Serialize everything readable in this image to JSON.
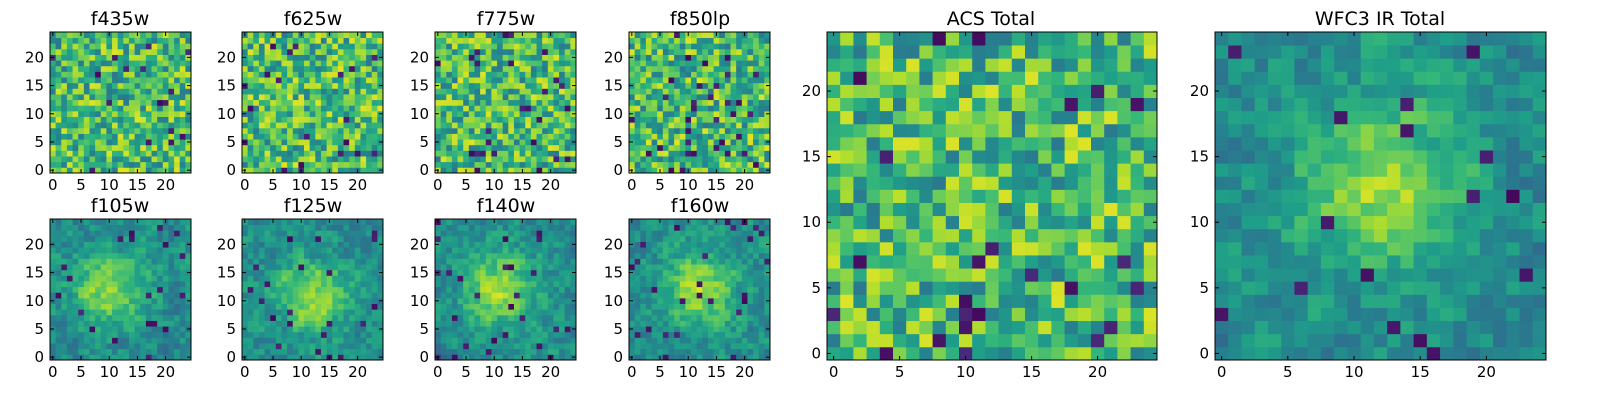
{
  "colormap": "viridis",
  "colors": {
    "viridis_low": "#440154",
    "viridis_mid": "#21918c",
    "viridis_high": "#fde725",
    "frame": "#000000",
    "background": "#ffffff"
  },
  "chart_data": [
    {
      "type": "heatmap",
      "title": "f435w",
      "grid_size": 25,
      "xticks": [
        0,
        5,
        10,
        15,
        20
      ],
      "yticks": [
        0,
        5,
        10,
        15,
        20
      ],
      "xlim": [
        -0.5,
        24.5
      ],
      "ylim": [
        -0.5,
        24.5
      ],
      "pattern": "noise",
      "dark_ratio": 0.025
    },
    {
      "type": "heatmap",
      "title": "f625w",
      "grid_size": 25,
      "xticks": [
        0,
        5,
        10,
        15,
        20
      ],
      "yticks": [
        0,
        5,
        10,
        15,
        20
      ],
      "xlim": [
        -0.5,
        24.5
      ],
      "ylim": [
        -0.5,
        24.5
      ],
      "pattern": "noise",
      "dark_ratio": 0.03
    },
    {
      "type": "heatmap",
      "title": "f775w",
      "grid_size": 25,
      "xticks": [
        0,
        5,
        10,
        15,
        20
      ],
      "yticks": [
        0,
        5,
        10,
        15,
        20
      ],
      "xlim": [
        -0.5,
        24.5
      ],
      "ylim": [
        -0.5,
        24.5
      ],
      "pattern": "noise",
      "dark_ratio": 0.04
    },
    {
      "type": "heatmap",
      "title": "f850lp",
      "grid_size": 25,
      "xticks": [
        0,
        5,
        10,
        15,
        20
      ],
      "yticks": [
        0,
        5,
        10,
        15,
        20
      ],
      "xlim": [
        -0.5,
        24.5
      ],
      "ylim": [
        -0.5,
        24.5
      ],
      "pattern": "noise",
      "dark_ratio": 0.04
    },
    {
      "type": "heatmap",
      "title": "f105w",
      "grid_size": 25,
      "xticks": [
        0,
        5,
        10,
        15,
        20
      ],
      "yticks": [
        0,
        5,
        10,
        15,
        20
      ],
      "xlim": [
        -0.5,
        24.5
      ],
      "ylim": [
        -0.5,
        24.5
      ],
      "pattern": "blob",
      "center": [
        10,
        12
      ],
      "dark_ratio": 0.03
    },
    {
      "type": "heatmap",
      "title": "f125w",
      "grid_size": 25,
      "xticks": [
        0,
        5,
        10,
        15,
        20
      ],
      "yticks": [
        0,
        5,
        10,
        15,
        20
      ],
      "xlim": [
        -0.5,
        24.5
      ],
      "ylim": [
        -0.5,
        24.5
      ],
      "pattern": "blob",
      "center": [
        12,
        11
      ],
      "dark_ratio": 0.03
    },
    {
      "type": "heatmap",
      "title": "f140w",
      "grid_size": 25,
      "xticks": [
        0,
        5,
        10,
        15,
        20
      ],
      "yticks": [
        0,
        5,
        10,
        15,
        20
      ],
      "xlim": [
        -0.5,
        24.5
      ],
      "ylim": [
        -0.5,
        24.5
      ],
      "pattern": "blob",
      "center": [
        11,
        12
      ],
      "dark_ratio": 0.05
    },
    {
      "type": "heatmap",
      "title": "f160w",
      "grid_size": 25,
      "xticks": [
        0,
        5,
        10,
        15,
        20
      ],
      "yticks": [
        0,
        5,
        10,
        15,
        20
      ],
      "xlim": [
        -0.5,
        24.5
      ],
      "ylim": [
        -0.5,
        24.5
      ],
      "pattern": "blob",
      "center": [
        12,
        12
      ],
      "dark_ratio": 0.035
    },
    {
      "type": "heatmap",
      "title": "ACS Total",
      "grid_size": 25,
      "xticks": [
        0,
        5,
        10,
        15,
        20
      ],
      "yticks": [
        0,
        5,
        10,
        15,
        20
      ],
      "xlim": [
        -0.5,
        24.5
      ],
      "ylim": [
        -0.5,
        24.5
      ],
      "pattern": "noise",
      "dark_ratio": 0.04
    },
    {
      "type": "heatmap",
      "title": "WFC3 IR Total",
      "grid_size": 25,
      "xticks": [
        0,
        5,
        10,
        15,
        20
      ],
      "yticks": [
        0,
        5,
        10,
        15,
        20
      ],
      "xlim": [
        -0.5,
        24.5
      ],
      "ylim": [
        -0.5,
        24.5
      ],
      "pattern": "blob",
      "center": [
        12,
        13
      ],
      "dark_ratio": 0.03
    }
  ]
}
